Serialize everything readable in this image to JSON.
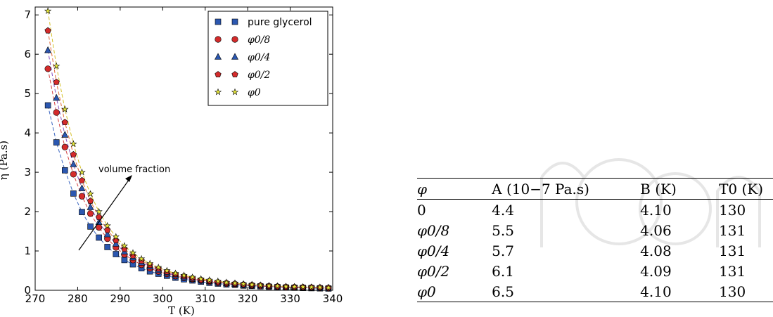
{
  "chart_data": {
    "type": "scatter",
    "title": "",
    "xlabel": "T (K)",
    "ylabel": "η (Pa.s)",
    "xlim": [
      270,
      340
    ],
    "ylim": [
      0,
      7.2
    ],
    "xticks": [
      "270",
      "280",
      "290",
      "300",
      "310",
      "320",
      "330",
      "340"
    ],
    "yticks": [
      "0",
      "1",
      "2",
      "3",
      "4",
      "5",
      "6",
      "7"
    ],
    "legend_position": "top-right",
    "grid": false,
    "annotation": "volume fraction",
    "x": [
      273,
      275,
      277,
      279,
      281,
      283,
      285,
      287,
      289,
      291,
      293,
      295,
      297,
      299,
      301,
      303,
      305,
      307,
      309,
      311,
      313,
      315,
      317,
      319,
      321,
      323,
      325,
      327,
      329,
      331,
      333,
      335,
      337,
      339
    ],
    "series": [
      {
        "name": "pure glycerol",
        "marker": "square",
        "color": "#2b57b0",
        "dash": "#3b66c0",
        "values": [
          4.7,
          3.76,
          3.05,
          2.46,
          1.99,
          1.62,
          1.34,
          1.1,
          0.92,
          0.77,
          0.66,
          0.56,
          0.48,
          0.42,
          0.37,
          0.32,
          0.28,
          0.25,
          0.22,
          0.19,
          0.17,
          0.15,
          0.14,
          0.12,
          0.11,
          0.1,
          0.09,
          0.08,
          0.07,
          0.065,
          0.06,
          0.055,
          0.05,
          0.045
        ]
      },
      {
        "name": "φ0/8",
        "marker": "circle",
        "color": "#d42b2b",
        "dash": "#d44040",
        "values": [
          5.63,
          4.52,
          3.64,
          2.95,
          2.39,
          1.95,
          1.6,
          1.31,
          1.09,
          0.91,
          0.77,
          0.65,
          0.56,
          0.48,
          0.42,
          0.36,
          0.32,
          0.28,
          0.25,
          0.22,
          0.19,
          0.17,
          0.15,
          0.14,
          0.12,
          0.11,
          0.1,
          0.09,
          0.08,
          0.075,
          0.07,
          0.065,
          0.06,
          0.055
        ]
      },
      {
        "name": "φ0/4",
        "marker": "triangle",
        "color": "#2b57b0",
        "dash": "#8a4fc0",
        "values": [
          6.1,
          4.89,
          3.95,
          3.2,
          2.59,
          2.11,
          1.73,
          1.42,
          1.18,
          0.98,
          0.83,
          0.7,
          0.6,
          0.51,
          0.44,
          0.38,
          0.33,
          0.29,
          0.26,
          0.23,
          0.2,
          0.18,
          0.16,
          0.14,
          0.13,
          0.12,
          0.105,
          0.095,
          0.085,
          0.08,
          0.075,
          0.07,
          0.065,
          0.06
        ]
      },
      {
        "name": "φ0/2",
        "marker": "pentagon",
        "color": "#d42b2b",
        "dash": "#e06a3a",
        "values": [
          6.6,
          5.29,
          4.27,
          3.45,
          2.79,
          2.27,
          1.86,
          1.53,
          1.27,
          1.05,
          0.88,
          0.75,
          0.64,
          0.55,
          0.47,
          0.41,
          0.36,
          0.31,
          0.27,
          0.24,
          0.21,
          0.19,
          0.17,
          0.15,
          0.14,
          0.125,
          0.11,
          0.1,
          0.09,
          0.085,
          0.08,
          0.075,
          0.07,
          0.065
        ]
      },
      {
        "name": "φ0",
        "marker": "star",
        "color": "#e8e83a",
        "dash": "#d4c028",
        "values": [
          7.1,
          5.7,
          4.6,
          3.72,
          3.0,
          2.45,
          2.0,
          1.64,
          1.36,
          1.13,
          0.95,
          0.8,
          0.68,
          0.58,
          0.5,
          0.43,
          0.38,
          0.33,
          0.29,
          0.26,
          0.23,
          0.2,
          0.18,
          0.16,
          0.145,
          0.13,
          0.115,
          0.105,
          0.095,
          0.09,
          0.085,
          0.08,
          0.075,
          0.07
        ]
      }
    ]
  },
  "table": {
    "headers": [
      "φ",
      "A (10−7 Pa.s)",
      "B (K)",
      "T0 (K)"
    ],
    "rows": [
      [
        "0",
        "4.4",
        "4.10",
        "130"
      ],
      [
        "φ0/8",
        "5.5",
        "4.06",
        "131"
      ],
      [
        "φ0/4",
        "5.7",
        "4.08",
        "131"
      ],
      [
        "φ0/2",
        "6.1",
        "4.09",
        "131"
      ],
      [
        "φ0",
        "6.5",
        "4.10",
        "130"
      ]
    ]
  }
}
